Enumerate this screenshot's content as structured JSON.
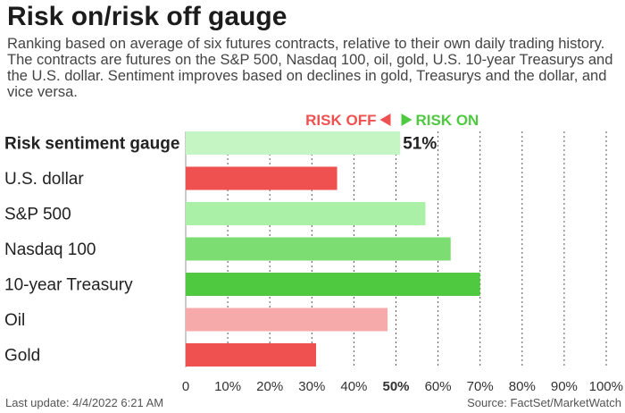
{
  "header": {
    "title": "Risk on/risk off gauge",
    "subtitle": "Ranking based on average of six futures contracts, relative to their own daily trading history. The contracts are futures on the S&P 500, Nasdaq 100, oil, gold, U.S. 10-year Treasurys and the U.S. dollar. Sentiment improves based on declines in gold, Treasurys and the dollar, and vice versa."
  },
  "legend": {
    "risk_off": "RISK OFF",
    "risk_on": "RISK ON"
  },
  "chart_data": {
    "type": "bar",
    "orientation": "horizontal",
    "categories": [
      "Risk sentiment gauge",
      "U.S. dollar",
      "S&P 500",
      "Nasdaq 100",
      "10-year Treasury",
      "Oil",
      "Gold"
    ],
    "values": [
      51,
      36,
      57,
      63,
      70,
      48,
      31
    ],
    "bar_colors": [
      "#c4f5c3",
      "#ef5151",
      "#aaf0a7",
      "#7cde72",
      "#4ec940",
      "#f7aaaa",
      "#ef5151"
    ],
    "data_labels": [
      "51%",
      "",
      "",
      "",
      "",
      "",
      ""
    ],
    "ticks": [
      "0",
      "10%",
      "20%",
      "30%",
      "40%",
      "50%",
      "60%",
      "70%",
      "80%",
      "90%",
      "100%"
    ],
    "xlim": [
      0,
      100
    ],
    "grid": true,
    "colors": {
      "risk_off": "#ef5151",
      "risk_on": "#4ec940"
    }
  },
  "footer": {
    "last_update": "Last update: 4/4/2022 6:21 AM",
    "source": "Source: FactSet/MarketWatch"
  }
}
